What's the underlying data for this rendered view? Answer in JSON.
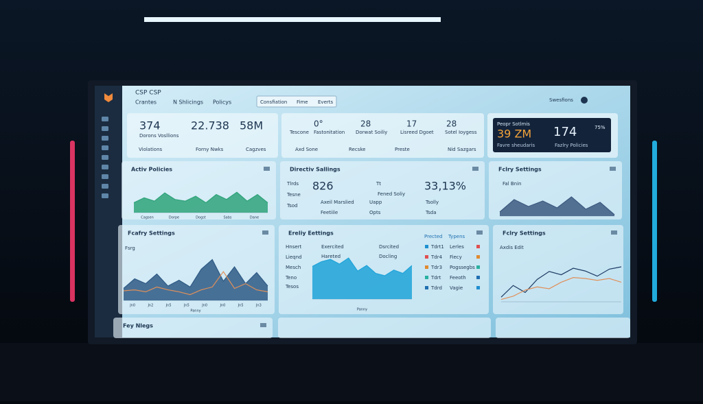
{
  "header": {
    "app": "CSP CSP",
    "nav": [
      "Crantes",
      "N Shlicings",
      "Policys"
    ],
    "tabs": [
      "Consfiation",
      "Fime",
      "Everts"
    ],
    "user": "Swesfions"
  },
  "summary": {
    "left": {
      "stats": [
        "374",
        "22.738",
        "58M"
      ],
      "caption": "Dorons Vosllions",
      "buttons": [
        "Violations",
        "Forny Nwks",
        "Cagzves"
      ]
    },
    "middle": {
      "stats": [
        "0°",
        "28",
        "17",
        "28"
      ],
      "captions": [
        "Tescone",
        "Fastonitation",
        "Dorwat Soiliy",
        "Lisreed Dgoet",
        "Sotel Ioygess"
      ],
      "buttons": [
        "Axd Sone",
        "Recske",
        "Preste",
        "Nid Sazgars"
      ]
    },
    "right": {
      "heading": "Peopr Sotlmis",
      "stats": [
        "39 ZM",
        "174",
        "75%"
      ],
      "captions": [
        "Favre sheudaris",
        "Fazlry Policies"
      ]
    }
  },
  "panels": [
    {
      "title": "Activ Policies",
      "chart": {
        "ylim": [
          0,
          100
        ],
        "x_labels": [
          "Cagsen",
          "Dorpe",
          "Dogst",
          "Sabs",
          "Dane"
        ],
        "series": [
          {
            "type": "area",
            "color": "#2fa37a",
            "values": [
              30,
              45,
              35,
              60,
              40,
              35,
              50,
              30,
              55,
              40,
              62,
              35,
              55,
              30
            ]
          }
        ]
      }
    },
    {
      "title": "Directiv Sallings",
      "rows": [
        "Tlrds",
        "Tesne",
        "Tsod"
      ],
      "stats": [
        "826",
        "33,13%"
      ],
      "items": [
        "Axeil Marslied",
        "Feetiile",
        "Tt",
        "Fened Soliy",
        "Uapp",
        "Opts",
        "Tsolly",
        "Tsda"
      ]
    },
    {
      "title": "Fclry Settings",
      "label": "Fal Bnin",
      "chart": {
        "ylim": [
          0,
          100
        ],
        "series": [
          {
            "type": "area",
            "color": "#3d5a80",
            "values": [
              15,
              60,
              35,
              55,
              30,
              70,
              25,
              50,
              5
            ]
          }
        ]
      }
    },
    {
      "title": "Fcafry Settings",
      "label": "Fsrg",
      "chart": {
        "ylim": [
          0,
          100
        ],
        "x_labels": [
          "Jn0",
          "Jn2",
          "Jn5",
          "Jn5",
          "Jn0",
          "Jn0",
          "Jn5",
          "Jn3"
        ],
        "x_title": "Panny",
        "series": [
          {
            "type": "area",
            "color": "#2f5a85",
            "values": [
              25,
              45,
              35,
              55,
              30,
              42,
              28,
              65,
              85,
              40,
              70,
              35,
              58,
              30
            ]
          },
          {
            "type": "line",
            "color": "#e0905a",
            "values": [
              20,
              22,
              18,
              28,
              22,
              18,
              12,
              22,
              28,
              60,
              25,
              35,
              22,
              18
            ]
          }
        ]
      }
    },
    {
      "title": "Ereliy Eettings",
      "rows": [
        "Hnsert",
        "Lieqnd",
        "Mesch",
        "Teno",
        "Tesos"
      ],
      "legend": [
        "Exercited",
        "Dsrcited",
        "Hareted",
        "Docling"
      ],
      "list_heads": [
        "Prected",
        "Typens"
      ],
      "list_left": [
        "Tdrt1",
        "Tdr4",
        "Tdr3",
        "Tdrt",
        "Tdrd"
      ],
      "list_right": [
        "Lerles",
        "Fiecy",
        "Pogssegbs",
        "Feeoth",
        "Vagie"
      ],
      "chart": {
        "ylim": [
          0,
          100
        ],
        "x_title": "Panny",
        "series": [
          {
            "type": "area",
            "color": "#1fa3d8",
            "values": [
              70,
              80,
              85,
              75,
              88,
              60,
              72,
              55,
              50,
              62,
              55,
              72
            ]
          }
        ]
      }
    },
    {
      "title": "Fclry Settings",
      "label": "Axdis Edit",
      "chart": {
        "ylim": [
          0,
          100
        ],
        "series": [
          {
            "type": "line",
            "color": "#1d3a63",
            "values": [
              10,
              35,
              20,
              48,
              65,
              58,
              72,
              66,
              55,
              70,
              75
            ]
          },
          {
            "type": "line",
            "color": "#e0905a",
            "values": [
              5,
              12,
              25,
              32,
              28,
              42,
              52,
              50,
              46,
              50,
              42
            ]
          }
        ]
      }
    },
    {
      "title": "Fey Nlegs"
    }
  ]
}
